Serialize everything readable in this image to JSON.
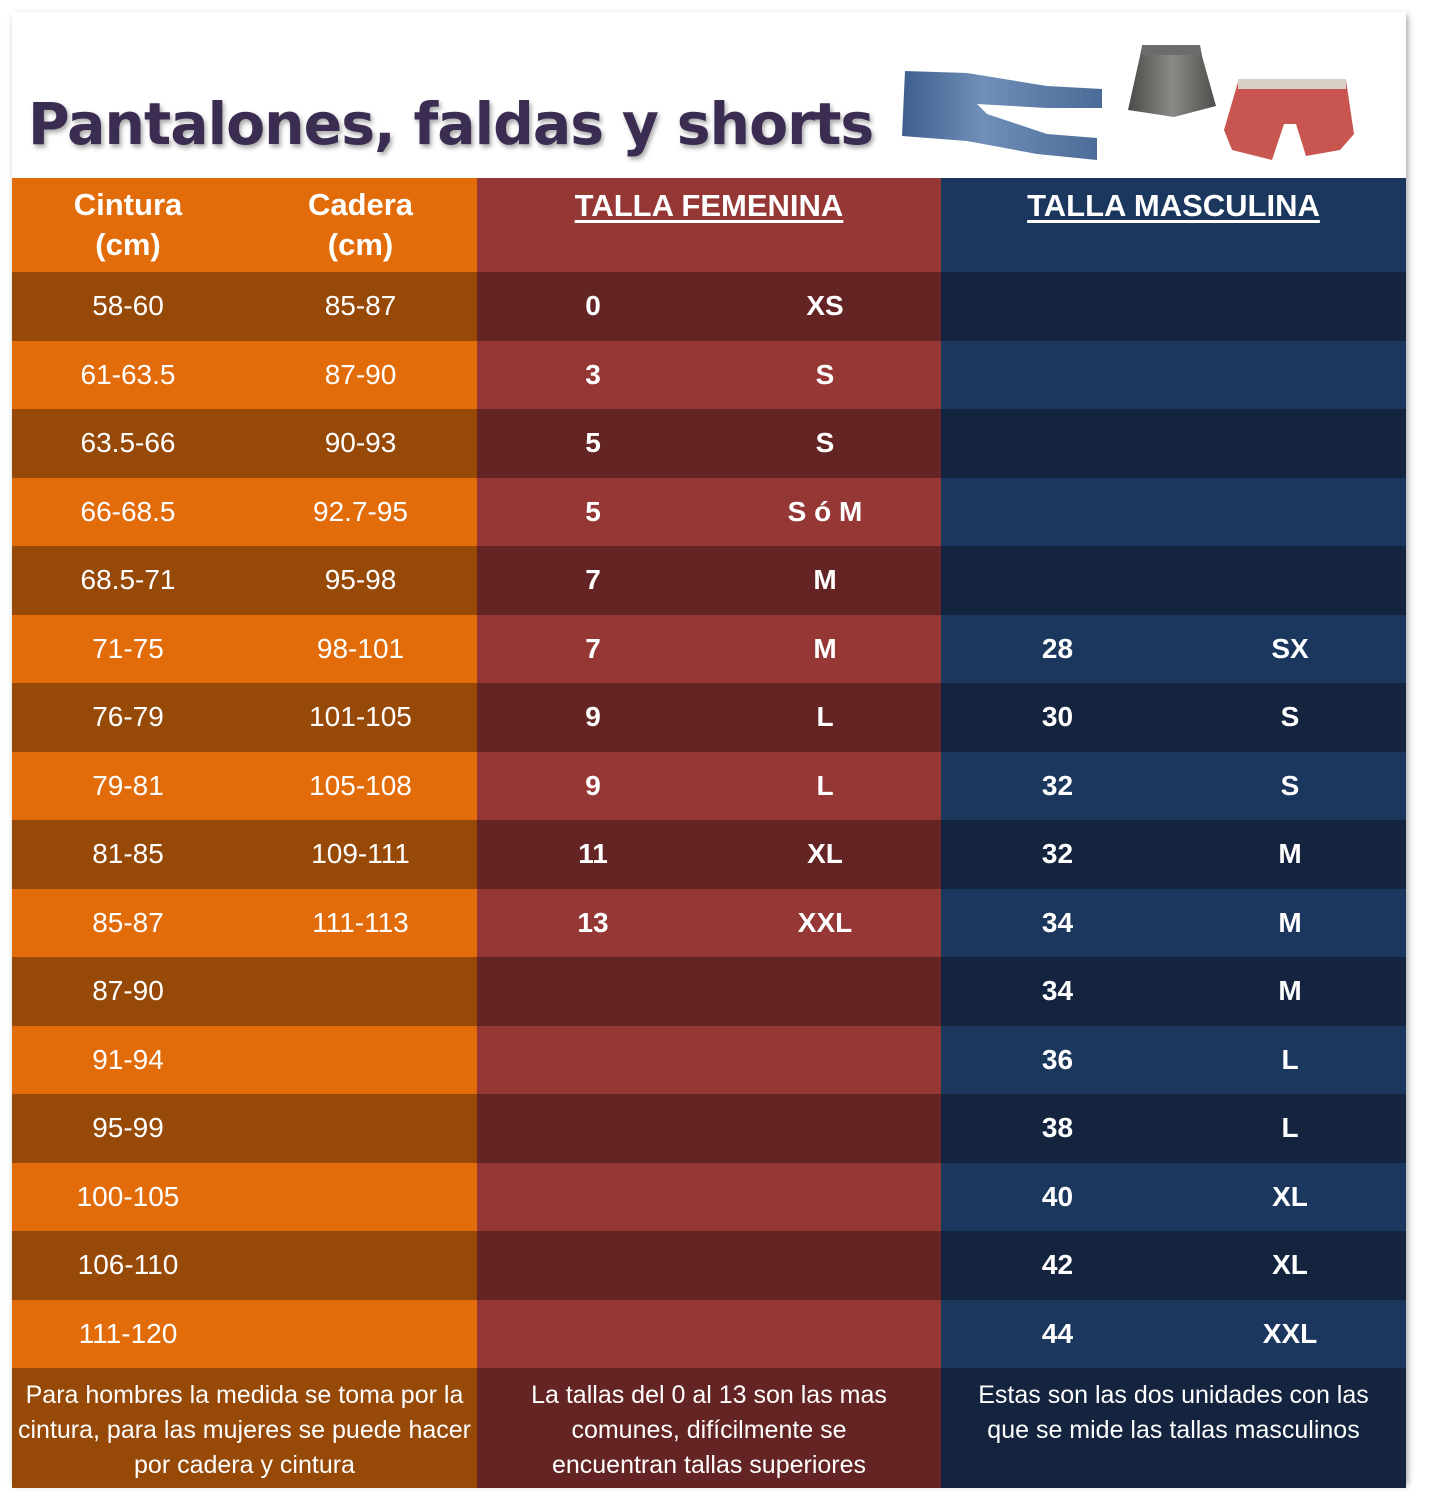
{
  "title": "Pantalones, faldas y shorts",
  "images": [
    "jeans-image",
    "skirt-image",
    "shorts-image"
  ],
  "colors": {
    "title": "#3b2c52",
    "orange_light": "#e36c0a",
    "orange_dark": "#974907",
    "red_light": "#953735",
    "red_dark": "#632423",
    "blue_light": "#1b375e",
    "blue_dark": "#14243f"
  },
  "headers": {
    "cintura_line1": "Cintura",
    "cintura_line2": "(cm)",
    "cadera_line1": "Cadera",
    "cadera_line2": "(cm)",
    "femenina": "TALLA FEMENINA",
    "masculina": "TALLA MASCULINA"
  },
  "rows": [
    {
      "cintura": "58-60",
      "cadera": "85-87",
      "fem_num": "0",
      "fem_size": "XS",
      "masc_num": "",
      "masc_size": ""
    },
    {
      "cintura": "61-63.5",
      "cadera": "87-90",
      "fem_num": "3",
      "fem_size": "S",
      "masc_num": "",
      "masc_size": ""
    },
    {
      "cintura": "63.5-66",
      "cadera": "90-93",
      "fem_num": "5",
      "fem_size": "S",
      "masc_num": "",
      "masc_size": ""
    },
    {
      "cintura": "66-68.5",
      "cadera": "92.7-95",
      "fem_num": "5",
      "fem_size": "S ó M",
      "masc_num": "",
      "masc_size": ""
    },
    {
      "cintura": "68.5-71",
      "cadera": "95-98",
      "fem_num": "7",
      "fem_size": "M",
      "masc_num": "",
      "masc_size": ""
    },
    {
      "cintura": "71-75",
      "cadera": "98-101",
      "fem_num": "7",
      "fem_size": "M",
      "masc_num": "28",
      "masc_size": "SX"
    },
    {
      "cintura": "76-79",
      "cadera": "101-105",
      "fem_num": "9",
      "fem_size": "L",
      "masc_num": "30",
      "masc_size": "S"
    },
    {
      "cintura": "79-81",
      "cadera": "105-108",
      "fem_num": "9",
      "fem_size": "L",
      "masc_num": "32",
      "masc_size": "S"
    },
    {
      "cintura": "81-85",
      "cadera": "109-111",
      "fem_num": "11",
      "fem_size": "XL",
      "masc_num": "32",
      "masc_size": "M"
    },
    {
      "cintura": "85-87",
      "cadera": "111-113",
      "fem_num": "13",
      "fem_size": "XXL",
      "masc_num": "34",
      "masc_size": "M"
    },
    {
      "cintura": "87-90",
      "cadera": "",
      "fem_num": "",
      "fem_size": "",
      "masc_num": "34",
      "masc_size": "M"
    },
    {
      "cintura": "91-94",
      "cadera": "",
      "fem_num": "",
      "fem_size": "",
      "masc_num": "36",
      "masc_size": "L"
    },
    {
      "cintura": "95-99",
      "cadera": "",
      "fem_num": "",
      "fem_size": "",
      "masc_num": "38",
      "masc_size": "L"
    },
    {
      "cintura": "100-105",
      "cadera": "",
      "fem_num": "",
      "fem_size": "",
      "masc_num": "40",
      "masc_size": "XL"
    },
    {
      "cintura": "106-110",
      "cadera": "",
      "fem_num": "",
      "fem_size": "",
      "masc_num": "42",
      "masc_size": "XL"
    },
    {
      "cintura": "111-120",
      "cadera": "",
      "fem_num": "",
      "fem_size": "",
      "masc_num": "44",
      "masc_size": "XXL"
    }
  ],
  "footer": {
    "medidas_note": "Para hombres la medida se toma por la cintura, para las mujeres se puede hacer por cadera y cintura",
    "femenina_note": "La tallas del 0 al 13 son las mas comunes, difícilmente se encuentran tallas superiores",
    "masculina_note": "Estas son las dos unidades con las que se mide las tallas masculinos"
  }
}
